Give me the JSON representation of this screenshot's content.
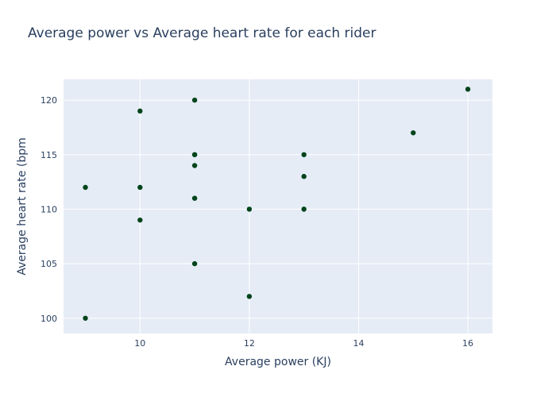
{
  "chart_data": {
    "type": "scatter",
    "title": "Average power vs Average heart rate for each rider",
    "xlabel": "Average power (KJ)",
    "ylabel": "Average heart rate (bpm",
    "xlim": [
      8.6,
      16.45
    ],
    "ylim": [
      98.6,
      121.9
    ],
    "xticks": [
      10,
      12,
      14,
      16
    ],
    "yticks": [
      100,
      105,
      110,
      115,
      120
    ],
    "grid": true,
    "plot_background": "#e5ecf6",
    "marker_color": "#00441b",
    "points": [
      {
        "x": 9,
        "y": 112
      },
      {
        "x": 9,
        "y": 100
      },
      {
        "x": 10,
        "y": 119
      },
      {
        "x": 10,
        "y": 112
      },
      {
        "x": 10,
        "y": 109
      },
      {
        "x": 11,
        "y": 120
      },
      {
        "x": 11,
        "y": 115
      },
      {
        "x": 11,
        "y": 115
      },
      {
        "x": 11,
        "y": 114
      },
      {
        "x": 11,
        "y": 111
      },
      {
        "x": 11,
        "y": 105
      },
      {
        "x": 12,
        "y": 110
      },
      {
        "x": 12,
        "y": 102
      },
      {
        "x": 13,
        "y": 115
      },
      {
        "x": 13,
        "y": 113
      },
      {
        "x": 13,
        "y": 110
      },
      {
        "x": 15,
        "y": 117
      },
      {
        "x": 16,
        "y": 121
      }
    ]
  }
}
